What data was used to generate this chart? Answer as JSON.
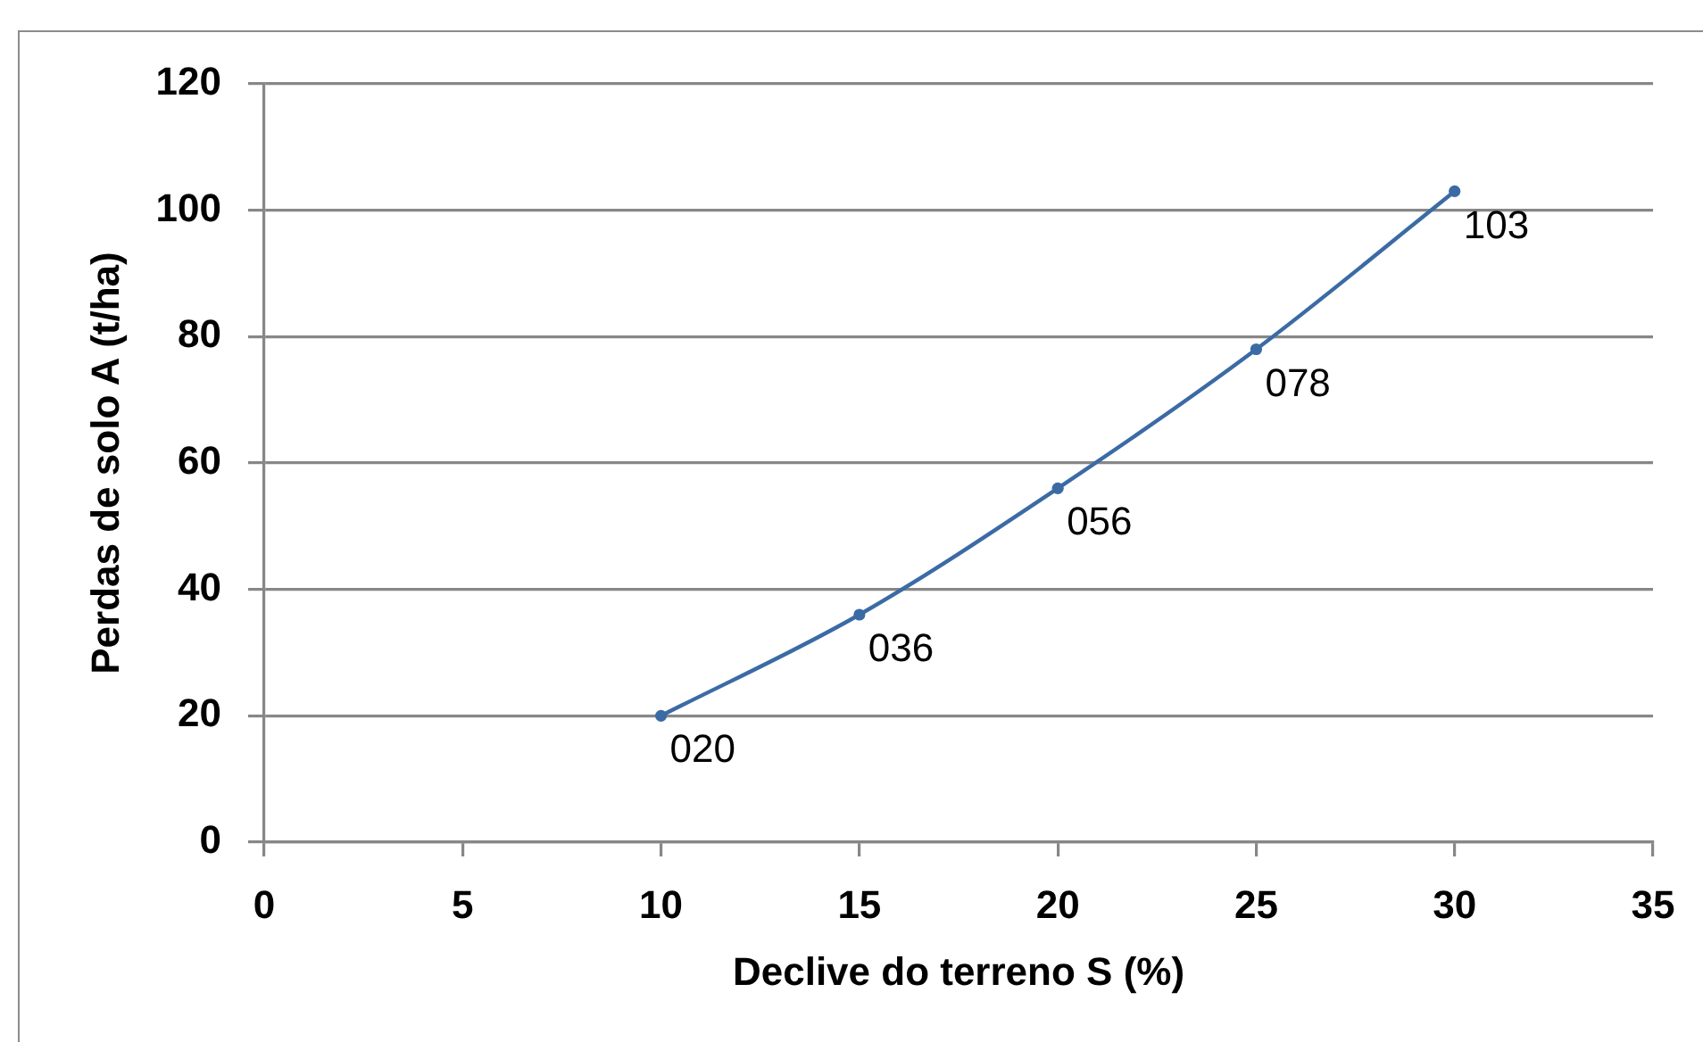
{
  "chart_data": {
    "type": "line",
    "xlabel": "Declive do terreno S (%)",
    "ylabel": "Perdas de solo A (t/ha)",
    "x": [
      10,
      15,
      20,
      25,
      30
    ],
    "series": [
      {
        "color": "#3b6ba5",
        "values": [
          20,
          36,
          56,
          78,
          103
        ],
        "value_labels": [
          "020",
          "036",
          "056",
          "078",
          "103"
        ]
      }
    ],
    "xlim": [
      0,
      35
    ],
    "xticks": [
      0,
      5,
      10,
      15,
      20,
      25,
      30,
      35
    ],
    "ylim": [
      0,
      120
    ],
    "yticks": [
      0,
      20,
      40,
      60,
      80,
      100,
      120
    ],
    "grid": "y",
    "marker": "circle",
    "line_style": "solid"
  }
}
